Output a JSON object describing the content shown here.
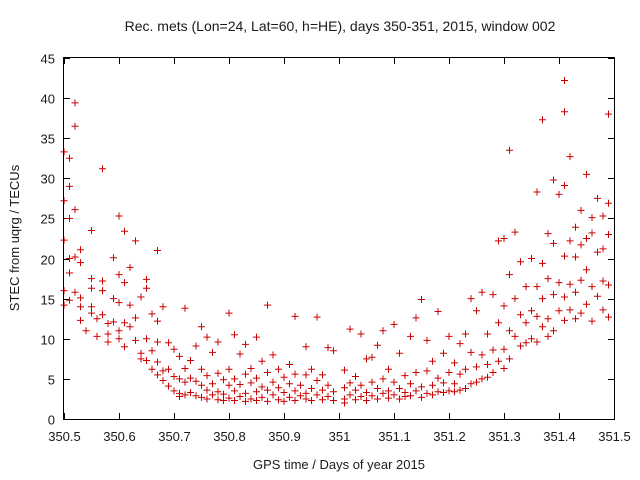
{
  "chart_data": {
    "type": "scatter",
    "title": "Rec. mets (Lon=24, Lat=60, h=HE), days 350-351, 2015, window 002",
    "xlabel": "GPS time / Days of year 2015",
    "ylabel": "STEC from uqrg / TECUs",
    "xlim": [
      350.5,
      351.5
    ],
    "ylim": [
      0,
      45
    ],
    "xticks": [
      350.5,
      350.6,
      350.7,
      350.8,
      350.9,
      351.0,
      351.1,
      351.2,
      351.3,
      351.4,
      351.5
    ],
    "xtick_labels": [
      "350.5",
      "350.6",
      "350.7",
      "350.8",
      "350.9",
      "351",
      "351.1",
      "351.2",
      "351.3",
      "351.4",
      "351.5"
    ],
    "yticks": [
      0,
      5,
      10,
      15,
      20,
      25,
      30,
      35,
      40,
      45
    ],
    "ytick_labels": [
      "0",
      "5",
      "10",
      "15",
      "20",
      "25",
      "30",
      "35",
      "40",
      "45"
    ],
    "grid": false,
    "legend": "none",
    "marker": "plus",
    "color": "#cc0000",
    "points": [
      [
        350.5,
        33.3
      ],
      [
        350.51,
        32.5
      ],
      [
        350.51,
        29.0
      ],
      [
        350.5,
        27.2
      ],
      [
        350.51,
        25.0
      ],
      [
        350.5,
        22.3
      ],
      [
        350.51,
        20.0
      ],
      [
        350.51,
        18.2
      ],
      [
        350.5,
        16.0
      ],
      [
        350.51,
        14.8
      ],
      [
        350.5,
        14.2
      ],
      [
        350.52,
        39.4
      ],
      [
        350.52,
        36.5
      ],
      [
        350.52,
        26.1
      ],
      [
        350.53,
        21.1
      ],
      [
        350.52,
        20.2
      ],
      [
        350.53,
        19.5
      ],
      [
        350.52,
        15.8
      ],
      [
        350.53,
        15.1
      ],
      [
        350.53,
        14.0
      ],
      [
        350.53,
        12.3
      ],
      [
        350.54,
        11.0
      ],
      [
        350.55,
        23.5
      ],
      [
        350.55,
        17.5
      ],
      [
        350.55,
        16.3
      ],
      [
        350.55,
        14.0
      ],
      [
        350.55,
        13.2
      ],
      [
        350.56,
        12.5
      ],
      [
        350.56,
        10.3
      ],
      [
        350.57,
        31.2
      ],
      [
        350.57,
        17.2
      ],
      [
        350.57,
        16.0
      ],
      [
        350.57,
        13.0
      ],
      [
        350.58,
        11.9
      ],
      [
        350.58,
        10.6
      ],
      [
        350.58,
        9.6
      ],
      [
        350.59,
        20.1
      ],
      [
        350.59,
        15.0
      ],
      [
        350.59,
        12.1
      ],
      [
        350.6,
        25.3
      ],
      [
        350.6,
        18.0
      ],
      [
        350.6,
        14.5
      ],
      [
        350.6,
        11.0
      ],
      [
        350.6,
        10.0
      ],
      [
        350.61,
        23.4
      ],
      [
        350.61,
        17.0
      ],
      [
        350.61,
        12.0
      ],
      [
        350.61,
        9.0
      ],
      [
        350.62,
        18.9
      ],
      [
        350.62,
        14.2
      ],
      [
        350.62,
        11.5
      ],
      [
        350.63,
        22.2
      ],
      [
        350.63,
        12.6
      ],
      [
        350.63,
        9.8
      ],
      [
        350.64,
        8.2
      ],
      [
        350.64,
        7.5
      ],
      [
        350.64,
        15.2
      ],
      [
        350.65,
        17.4
      ],
      [
        350.65,
        16.3
      ],
      [
        350.65,
        10.0
      ],
      [
        350.65,
        7.3
      ],
      [
        350.66,
        13.1
      ],
      [
        350.66,
        8.5
      ],
      [
        350.66,
        6.2
      ],
      [
        350.67,
        21.0
      ],
      [
        350.67,
        12.2
      ],
      [
        350.67,
        9.6
      ],
      [
        350.67,
        7.1
      ],
      [
        350.67,
        5.5
      ],
      [
        350.68,
        14.0
      ],
      [
        350.68,
        6.0
      ],
      [
        350.68,
        4.8
      ],
      [
        350.69,
        9.5
      ],
      [
        350.69,
        6.2
      ],
      [
        350.69,
        4.1
      ],
      [
        350.7,
        8.7
      ],
      [
        350.7,
        5.3
      ],
      [
        350.7,
        3.5
      ],
      [
        350.71,
        7.8
      ],
      [
        350.71,
        5.0
      ],
      [
        350.71,
        3.2
      ],
      [
        350.71,
        2.8
      ],
      [
        350.72,
        13.8
      ],
      [
        350.72,
        6.3
      ],
      [
        350.72,
        4.6
      ],
      [
        350.72,
        3.0
      ],
      [
        350.73,
        7.3
      ],
      [
        350.73,
        5.1
      ],
      [
        350.73,
        3.3
      ],
      [
        350.74,
        9.1
      ],
      [
        350.74,
        4.7
      ],
      [
        350.74,
        2.9
      ],
      [
        350.75,
        11.5
      ],
      [
        350.75,
        6.2
      ],
      [
        350.75,
        4.2
      ],
      [
        350.75,
        2.7
      ],
      [
        350.76,
        10.2
      ],
      [
        350.76,
        5.4
      ],
      [
        350.76,
        3.6
      ],
      [
        350.76,
        2.5
      ],
      [
        350.77,
        8.3
      ],
      [
        350.77,
        4.4
      ],
      [
        350.77,
        3.0
      ],
      [
        350.78,
        9.6
      ],
      [
        350.78,
        5.7
      ],
      [
        350.78,
        3.4
      ],
      [
        350.78,
        2.4
      ],
      [
        350.79,
        4.9
      ],
      [
        350.79,
        3.1
      ],
      [
        350.79,
        2.3
      ],
      [
        350.8,
        13.2
      ],
      [
        350.8,
        6.2
      ],
      [
        350.8,
        4.2
      ],
      [
        350.8,
        2.6
      ],
      [
        350.81,
        10.5
      ],
      [
        350.81,
        5.0
      ],
      [
        350.81,
        3.5
      ],
      [
        350.81,
        2.3
      ],
      [
        350.82,
        8.1
      ],
      [
        350.82,
        4.3
      ],
      [
        350.82,
        2.8
      ],
      [
        350.83,
        9.3
      ],
      [
        350.83,
        5.6
      ],
      [
        350.83,
        3.2
      ],
      [
        350.83,
        2.2
      ],
      [
        350.84,
        6.3
      ],
      [
        350.84,
        4.5
      ],
      [
        350.84,
        2.5
      ],
      [
        350.85,
        10.2
      ],
      [
        350.85,
        5.1
      ],
      [
        350.85,
        3.4
      ],
      [
        350.85,
        2.3
      ],
      [
        350.86,
        7.2
      ],
      [
        350.86,
        4.0
      ],
      [
        350.86,
        2.7
      ],
      [
        350.87,
        14.2
      ],
      [
        350.87,
        5.8
      ],
      [
        350.87,
        3.6
      ],
      [
        350.87,
        2.2
      ],
      [
        350.88,
        8.0
      ],
      [
        350.88,
        4.6
      ],
      [
        350.88,
        3.0
      ],
      [
        350.89,
        6.2
      ],
      [
        350.89,
        3.9
      ],
      [
        350.89,
        2.4
      ],
      [
        350.9,
        5.2
      ],
      [
        350.9,
        3.3
      ],
      [
        350.9,
        2.2
      ],
      [
        350.91,
        6.8
      ],
      [
        350.91,
        4.4
      ],
      [
        350.91,
        2.7
      ],
      [
        350.92,
        12.8
      ],
      [
        350.92,
        5.6
      ],
      [
        350.92,
        3.5
      ],
      [
        350.92,
        2.3
      ],
      [
        350.93,
        4.2
      ],
      [
        350.93,
        2.9
      ],
      [
        350.94,
        9.0
      ],
      [
        350.94,
        5.5
      ],
      [
        350.94,
        3.2
      ],
      [
        350.94,
        2.5
      ],
      [
        350.95,
        6.2
      ],
      [
        350.95,
        3.8
      ],
      [
        350.95,
        2.3
      ],
      [
        350.96,
        12.7
      ],
      [
        350.96,
        4.8
      ],
      [
        350.96,
        3.0
      ],
      [
        350.97,
        5.5
      ],
      [
        350.97,
        3.6
      ],
      [
        350.97,
        2.4
      ],
      [
        350.98,
        8.9
      ],
      [
        350.98,
        4.2
      ],
      [
        350.98,
        2.8
      ],
      [
        350.99,
        8.5
      ],
      [
        350.99,
        3.4
      ],
      [
        350.99,
        2.3
      ],
      [
        351.01,
        6.1
      ],
      [
        351.01,
        3.9
      ],
      [
        351.01,
        2.5
      ],
      [
        351.01,
        2.0
      ],
      [
        351.02,
        11.2
      ],
      [
        351.02,
        4.5
      ],
      [
        351.02,
        3.0
      ],
      [
        351.03,
        5.3
      ],
      [
        351.03,
        3.6
      ],
      [
        351.03,
        2.4
      ],
      [
        351.04,
        10.6
      ],
      [
        351.04,
        4.2
      ],
      [
        351.04,
        2.8
      ],
      [
        351.05,
        7.5
      ],
      [
        351.05,
        3.3
      ],
      [
        351.05,
        2.3
      ],
      [
        351.06,
        7.7
      ],
      [
        351.06,
        4.6
      ],
      [
        351.06,
        2.9
      ],
      [
        351.07,
        9.2
      ],
      [
        351.07,
        3.8
      ],
      [
        351.07,
        2.5
      ],
      [
        351.08,
        11.0
      ],
      [
        351.08,
        5.0
      ],
      [
        351.08,
        3.2
      ],
      [
        351.09,
        6.2
      ],
      [
        351.09,
        3.5
      ],
      [
        351.09,
        2.6
      ],
      [
        351.1,
        11.8
      ],
      [
        351.1,
        4.6
      ],
      [
        351.1,
        3.0
      ],
      [
        351.11,
        8.2
      ],
      [
        351.11,
        3.8
      ],
      [
        351.11,
        2.5
      ],
      [
        351.12,
        5.4
      ],
      [
        351.12,
        3.3
      ],
      [
        351.12,
        2.8
      ],
      [
        351.13,
        10.3
      ],
      [
        351.13,
        4.4
      ],
      [
        351.13,
        2.9
      ],
      [
        351.14,
        12.6
      ],
      [
        351.14,
        5.8
      ],
      [
        351.14,
        3.5
      ],
      [
        351.15,
        14.9
      ],
      [
        351.15,
        4.0
      ],
      [
        351.15,
        2.7
      ],
      [
        351.16,
        9.8
      ],
      [
        351.16,
        6.0
      ],
      [
        351.16,
        3.2
      ],
      [
        351.17,
        7.2
      ],
      [
        351.17,
        4.2
      ],
      [
        351.17,
        3.0
      ],
      [
        351.18,
        13.4
      ],
      [
        351.18,
        5.1
      ],
      [
        351.18,
        3.4
      ],
      [
        351.19,
        8.2
      ],
      [
        351.19,
        4.5
      ],
      [
        351.19,
        3.3
      ],
      [
        351.2,
        10.3
      ],
      [
        351.2,
        5.8
      ],
      [
        351.2,
        3.5
      ],
      [
        351.21,
        7.0
      ],
      [
        351.21,
        4.4
      ],
      [
        351.21,
        3.4
      ],
      [
        351.22,
        9.4
      ],
      [
        351.22,
        5.6
      ],
      [
        351.22,
        3.6
      ],
      [
        351.23,
        10.6
      ],
      [
        351.23,
        6.2
      ],
      [
        351.23,
        3.8
      ],
      [
        351.24,
        15.0
      ],
      [
        351.24,
        8.3
      ],
      [
        351.24,
        4.4
      ],
      [
        351.25,
        13.5
      ],
      [
        351.25,
        6.5
      ],
      [
        351.25,
        4.6
      ],
      [
        351.26,
        15.8
      ],
      [
        351.26,
        8.0
      ],
      [
        351.26,
        5.0
      ],
      [
        351.27,
        10.6
      ],
      [
        351.27,
        6.8
      ],
      [
        351.27,
        5.2
      ],
      [
        351.28,
        15.5
      ],
      [
        351.28,
        8.6
      ],
      [
        351.28,
        5.8
      ],
      [
        351.29,
        22.2
      ],
      [
        351.29,
        12.0
      ],
      [
        351.29,
        7.2
      ],
      [
        351.3,
        22.5
      ],
      [
        351.3,
        14.1
      ],
      [
        351.3,
        8.7
      ],
      [
        351.3,
        6.3
      ],
      [
        351.31,
        33.5
      ],
      [
        351.31,
        18.0
      ],
      [
        351.31,
        11.0
      ],
      [
        351.31,
        7.5
      ],
      [
        351.32,
        23.3
      ],
      [
        351.32,
        15.0
      ],
      [
        351.32,
        10.3
      ],
      [
        351.33,
        19.6
      ],
      [
        351.33,
        13.0
      ],
      [
        351.33,
        9.1
      ],
      [
        351.34,
        16.5
      ],
      [
        351.34,
        12.0
      ],
      [
        351.34,
        9.5
      ],
      [
        351.35,
        20.0
      ],
      [
        351.35,
        13.5
      ],
      [
        351.35,
        10.0
      ],
      [
        351.36,
        28.3
      ],
      [
        351.36,
        16.5
      ],
      [
        351.36,
        12.8
      ],
      [
        351.36,
        9.6
      ],
      [
        351.37,
        37.3
      ],
      [
        351.37,
        19.4
      ],
      [
        351.37,
        15.0
      ],
      [
        351.37,
        11.5
      ],
      [
        351.38,
        23.1
      ],
      [
        351.38,
        17.5
      ],
      [
        351.38,
        12.5
      ],
      [
        351.38,
        10.3
      ],
      [
        351.39,
        29.8
      ],
      [
        351.39,
        21.9
      ],
      [
        351.39,
        15.5
      ],
      [
        351.39,
        11.0
      ],
      [
        351.4,
        28.0
      ],
      [
        351.4,
        17.0
      ],
      [
        351.4,
        13.5
      ],
      [
        351.41,
        42.2
      ],
      [
        351.41,
        38.3
      ],
      [
        351.41,
        29.1
      ],
      [
        351.41,
        20.3
      ],
      [
        351.41,
        15.2
      ],
      [
        351.41,
        12.3
      ],
      [
        351.42,
        32.7
      ],
      [
        351.42,
        22.2
      ],
      [
        351.42,
        16.8
      ],
      [
        351.42,
        13.6
      ],
      [
        351.43,
        23.9
      ],
      [
        351.43,
        20.2
      ],
      [
        351.43,
        15.8
      ],
      [
        351.43,
        12.5
      ],
      [
        351.44,
        26.0
      ],
      [
        351.44,
        21.7
      ],
      [
        351.44,
        17.3
      ],
      [
        351.44,
        13.2
      ],
      [
        351.45,
        30.5
      ],
      [
        351.45,
        22.5
      ],
      [
        351.45,
        18.6
      ],
      [
        351.45,
        14.3
      ],
      [
        351.46,
        25.1
      ],
      [
        351.46,
        23.2
      ],
      [
        351.46,
        16.5
      ],
      [
        351.46,
        12.2
      ],
      [
        351.47,
        27.5
      ],
      [
        351.47,
        20.8
      ],
      [
        351.47,
        15.3
      ],
      [
        351.48,
        25.3
      ],
      [
        351.48,
        21.2
      ],
      [
        351.48,
        17.2
      ],
      [
        351.48,
        13.6
      ],
      [
        351.49,
        38.0
      ],
      [
        351.49,
        26.9
      ],
      [
        351.49,
        23.0
      ],
      [
        351.49,
        16.7
      ],
      [
        351.49,
        12.7
      ]
    ]
  }
}
